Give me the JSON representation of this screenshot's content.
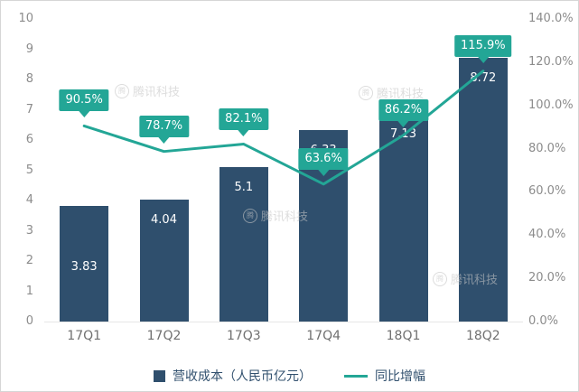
{
  "chart_data": {
    "type": "bar+line",
    "title": "",
    "categories": [
      "17Q1",
      "17Q2",
      "17Q3",
      "17Q4",
      "18Q1",
      "18Q2"
    ],
    "series": [
      {
        "name": "营收成本（人民币亿元）",
        "type": "bar",
        "axis": "left",
        "color": "#2f4f6d",
        "values": [
          3.83,
          4.04,
          5.1,
          6.33,
          7.13,
          8.72
        ],
        "value_labels": [
          "3.83",
          "4.04",
          "5.1",
          "6.33",
          "7.13",
          "8.72"
        ]
      },
      {
        "name": "同比增幅",
        "type": "line",
        "axis": "right",
        "color": "#23a696",
        "values": [
          90.5,
          78.7,
          82.1,
          63.6,
          86.2,
          115.9
        ],
        "value_labels": [
          "90.5%",
          "78.7%",
          "82.1%",
          "63.6%",
          "86.2%",
          "115.9%"
        ]
      }
    ],
    "left_axis": {
      "min": 0,
      "max": 10,
      "ticks": [
        "0",
        "1",
        "2",
        "3",
        "4",
        "5",
        "6",
        "7",
        "8",
        "9",
        "10"
      ]
    },
    "right_axis": {
      "min": 0,
      "max": 140,
      "ticks": [
        "0.0%",
        "20.0%",
        "40.0%",
        "60.0%",
        "80.0%",
        "100.0%",
        "120.0%",
        "140.0%"
      ]
    },
    "legend": [
      "营收成本（人民币亿元）",
      "同比增幅"
    ],
    "legend_position": "bottom",
    "grid": false,
    "watermark_text": "腾讯科技"
  }
}
